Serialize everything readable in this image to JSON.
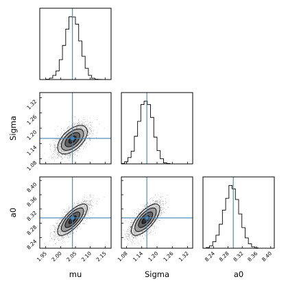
{
  "chart_data": {
    "type": "scatter",
    "plot_kind": "corner",
    "parameters": [
      {
        "name": "mu",
        "label": "mu",
        "truth": 2.04,
        "range": [
          1.93,
          2.17
        ],
        "ticks": [
          "1.95",
          "2.00",
          "2.05",
          "2.10",
          "2.15"
        ],
        "tick_values": [
          1.95,
          2.0,
          2.05,
          2.1,
          2.15
        ],
        "mean": 2.04,
        "sd": 0.025
      },
      {
        "name": "Sigma",
        "label": "Sigma",
        "truth": 1.16,
        "range": [
          1.06,
          1.34
        ],
        "ticks": [
          "1.08",
          "1.14",
          "1.20",
          "1.26",
          "1.32"
        ],
        "tick_values": [
          1.08,
          1.14,
          1.2,
          1.26,
          1.32
        ],
        "mean": 1.155,
        "sd": 0.028
      },
      {
        "name": "a0",
        "label": "a0",
        "truth": 8.295,
        "range": [
          8.21,
          8.41
        ],
        "ticks": [
          "8.24",
          "8.28",
          "8.32",
          "8.36",
          "8.40"
        ],
        "tick_values": [
          8.24,
          8.28,
          8.32,
          8.36,
          8.4
        ],
        "mean": 8.29,
        "sd": 0.022
      }
    ],
    "correlations": {
      "Sigma|mu": 0.55,
      "a0|mu": 0.75,
      "a0|Sigma": 0.7
    },
    "contour_levels_sigma": [
      0.5,
      1.0,
      1.5,
      2.0
    ],
    "colors": {
      "truth_line": "#4682b4",
      "points": "#000000",
      "contour": "#000000"
    },
    "grid": false,
    "legend": "none"
  }
}
